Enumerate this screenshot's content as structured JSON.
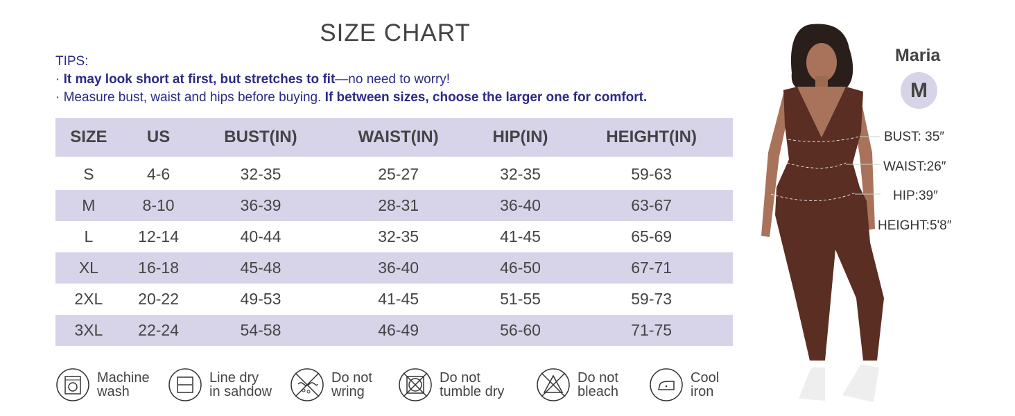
{
  "title": "SIZE CHART",
  "tips": {
    "label": "TIPS:",
    "line1_bold": "It may look short at first, but stretches to fit",
    "line1_rest": "—no need to worry!",
    "line2_rest": "Measure bust, waist and hips before buying. ",
    "line2_bold": "If between sizes, choose the larger one for comfort."
  },
  "table": {
    "headers": [
      "SIZE",
      "US",
      "BUST(IN)",
      "WAIST(IN)",
      "HIP(IN)",
      "HEIGHT(IN)"
    ],
    "rows": [
      [
        "S",
        "4-6",
        "32-35",
        "25-27",
        "32-35",
        "59-63"
      ],
      [
        "M",
        "8-10",
        "36-39",
        "28-31",
        "36-40",
        "63-67"
      ],
      [
        "L",
        "12-14",
        "40-44",
        "32-35",
        "41-45",
        "65-69"
      ],
      [
        "XL",
        "16-18",
        "45-48",
        "36-40",
        "46-50",
        "67-71"
      ],
      [
        "2XL",
        "20-22",
        "49-53",
        "41-45",
        "51-55",
        "59-73"
      ],
      [
        "3XL",
        "22-24",
        "54-58",
        "46-49",
        "56-60",
        "71-75"
      ]
    ]
  },
  "care": [
    {
      "icon": "machine-wash-icon",
      "label": "Machine\nwash"
    },
    {
      "icon": "line-dry-shade-icon",
      "label": "Line dry\nin sahdow"
    },
    {
      "icon": "do-not-wring-icon",
      "label": "Do not\nwring"
    },
    {
      "icon": "do-not-tumble-dry-icon",
      "label": "Do not\ntumble dry"
    },
    {
      "icon": "do-not-bleach-icon",
      "label": "Do not\nbleach"
    },
    {
      "icon": "cool-iron-icon",
      "label": "Cool\niron"
    }
  ],
  "model": {
    "name": "Maria",
    "size": "M",
    "bust": "BUST: 35″",
    "waist": "WAIST:26″",
    "hip": "HIP:39″",
    "height": "HEIGHT:5'8″"
  },
  "colors": {
    "accent": "#d7d4ea",
    "tips": "#2b2a86",
    "garment": "#5a2e22"
  }
}
